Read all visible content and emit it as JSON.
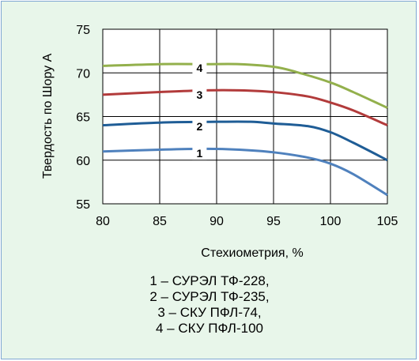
{
  "chart_data": {
    "type": "line",
    "xlabel": "Стехиометрия, %",
    "ylabel": "Твердость по Шору А",
    "xlim": [
      80,
      105
    ],
    "ylim": [
      55,
      75
    ],
    "xticks": [
      "80",
      "85",
      "90",
      "95",
      "100",
      "105"
    ],
    "yticks": [
      "55",
      "60",
      "65",
      "70",
      "75"
    ],
    "grid": true,
    "legend_position": "below",
    "series": [
      {
        "name": "1",
        "color": "#4f81bd",
        "x": [
          80,
          85,
          89,
          92,
          95,
          98,
          100,
          102,
          105
        ],
        "y": [
          61.0,
          61.2,
          61.3,
          61.2,
          60.9,
          60.3,
          59.6,
          58.4,
          56.0
        ]
      },
      {
        "name": "2",
        "color": "#1f5d96",
        "x": [
          80,
          85,
          90,
          93,
          95,
          98,
          100,
          102,
          105
        ],
        "y": [
          64.0,
          64.3,
          64.4,
          64.4,
          64.2,
          63.9,
          63.2,
          62.0,
          60.0
        ]
      },
      {
        "name": "3",
        "color": "#b23b3b",
        "x": [
          80,
          85,
          89,
          92,
          95,
          98,
          100,
          102,
          105
        ],
        "y": [
          67.5,
          67.8,
          68.0,
          68.0,
          67.8,
          67.3,
          66.6,
          65.7,
          64.0
        ]
      },
      {
        "name": "4",
        "color": "#93b04c",
        "x": [
          80,
          85,
          89,
          92,
          95,
          97,
          100,
          102,
          105
        ],
        "y": [
          70.8,
          71.0,
          71.0,
          71.0,
          70.7,
          70.1,
          68.9,
          67.8,
          66.0
        ]
      }
    ],
    "legend_lines": [
      "1 – СУРЭЛ ТФ-228,",
      "2 – СУРЭЛ ТФ-235,",
      "3 – СКУ ПФЛ-74,",
      "4 – СКУ ПФЛ-100"
    ]
  }
}
